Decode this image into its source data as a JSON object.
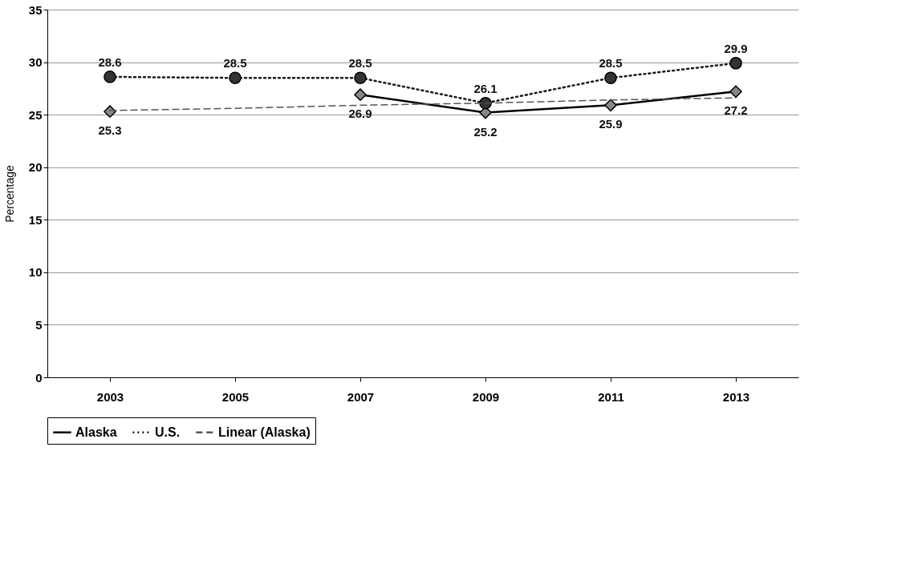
{
  "chart_data": {
    "type": "line",
    "ylabel": "Percentage",
    "categories": [
      "2003",
      "2005",
      "2007",
      "2009",
      "2011",
      "2013"
    ],
    "series": [
      {
        "name": "Alaska",
        "color": "#000000",
        "marker": "diamond",
        "line_style": "solid",
        "values": [
          25.3,
          null,
          26.9,
          25.2,
          25.9,
          27.2
        ],
        "value_labels": [
          "25.3",
          null,
          "26.9",
          "25.2",
          "25.9",
          "27.2"
        ]
      },
      {
        "name": "U.S.",
        "color": "#1a1a1a",
        "marker": "circle",
        "line_style": "dotted",
        "values": [
          28.6,
          28.5,
          28.5,
          26.1,
          28.5,
          29.9
        ],
        "value_labels": [
          "28.6",
          "28.5",
          "28.5",
          "26.1",
          "28.5",
          "29.9"
        ]
      },
      {
        "name": "Linear (Alaska)",
        "color": "#555555",
        "marker": "none",
        "line_style": "dashed",
        "values": [
          25.4,
          25.6,
          25.9,
          26.1,
          26.4,
          26.6
        ]
      }
    ],
    "ylim": [
      0,
      35
    ],
    "yticks": [
      0,
      5,
      10,
      15,
      20,
      25,
      30,
      35
    ],
    "grid": "y",
    "legend": "bottom"
  }
}
